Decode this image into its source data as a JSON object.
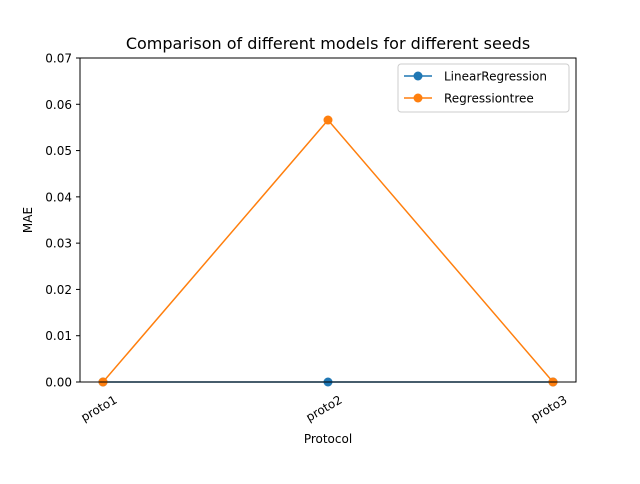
{
  "chart_data": {
    "type": "line",
    "title": "Comparison of different models for different seeds",
    "xlabel": "Protocol",
    "ylabel": "MAE",
    "categories": [
      "proto1",
      "proto2",
      "proto3"
    ],
    "ylim": [
      0,
      0.07
    ],
    "yticks": [
      "0.00",
      "0.01",
      "0.02",
      "0.03",
      "0.04",
      "0.05",
      "0.06",
      "0.07"
    ],
    "ytick_values": [
      0,
      0.01,
      0.02,
      0.03,
      0.04,
      0.05,
      0.06,
      0.07
    ],
    "grid": false,
    "legend_position": "upper right",
    "series": [
      {
        "name": "LinearRegression",
        "values": [
          0.0,
          0.0,
          0.0
        ],
        "color": "#1f77b4",
        "marker": "circle"
      },
      {
        "name": "Regressiontree",
        "values": [
          0.0,
          0.0566,
          0.0
        ],
        "color": "#ff7f0e",
        "marker": "circle"
      }
    ]
  }
}
